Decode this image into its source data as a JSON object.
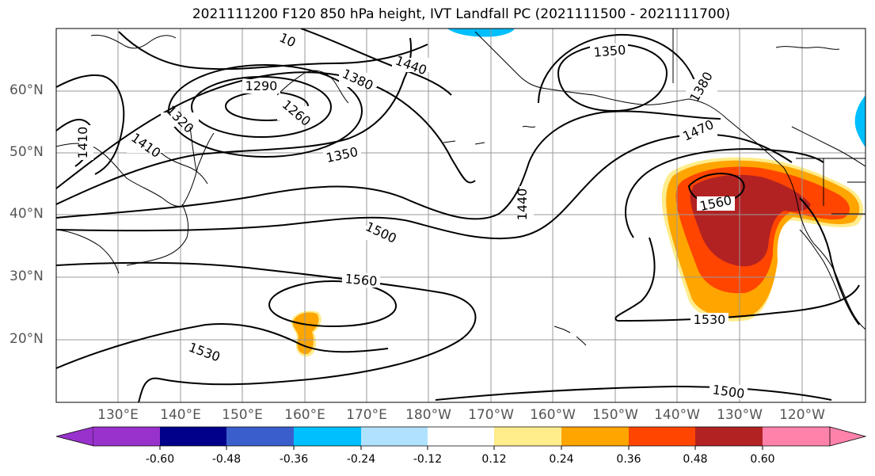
{
  "title": "2021111200 F120 850 hPa height, IVT Landfall PC (2021111500 - 2021111700)",
  "latitude_labels": [
    "60°N",
    "50°N",
    "40°N",
    "30°N",
    "20°N"
  ],
  "longitude_labels": [
    "130°E",
    "140°E",
    "150°E",
    "160°E",
    "170°E",
    "180°W",
    "170°W",
    "160°W",
    "150°W",
    "140°W",
    "130°W",
    "120°W"
  ],
  "contour_labels": [
    "10",
    "1440",
    "1350",
    "1290",
    "1380",
    "1260",
    "1320",
    "1410",
    "1410",
    "1350",
    "1470",
    "1380",
    "1440",
    "1560",
    "1500",
    "1560",
    "1530",
    "1530",
    "1500"
  ],
  "colorbar": {
    "tick_labels": [
      "-0.60",
      "-0.48",
      "-0.36",
      "-0.24",
      "-0.12",
      "0.12",
      "0.24",
      "0.36",
      "0.48",
      "0.60"
    ],
    "colors": [
      "#9932cc",
      "#00008b",
      "#3a5fcd",
      "#00bfff",
      "#b0e2ff",
      "#ffffff",
      "#ffec8b",
      "#ffa500",
      "#ff4500",
      "#b22222",
      "#ff82ab"
    ]
  }
}
